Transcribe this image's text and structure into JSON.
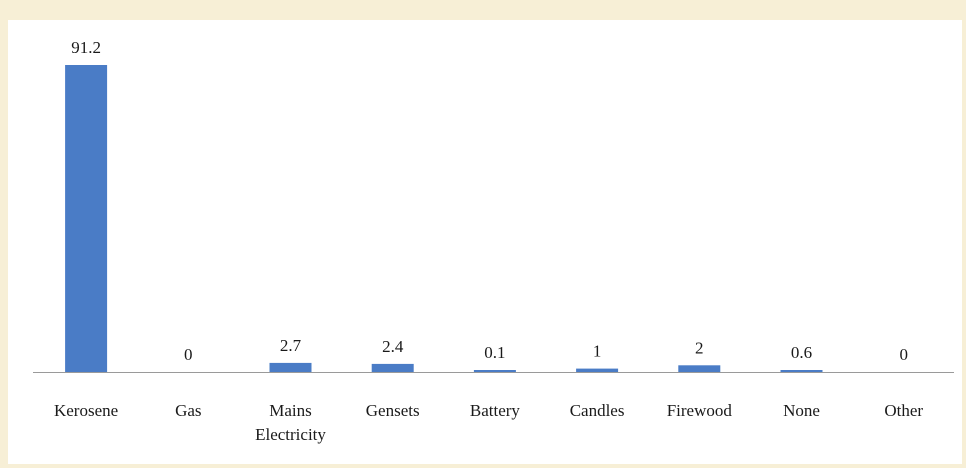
{
  "chart_data": {
    "type": "bar",
    "categories": [
      "Kerosene",
      "Gas",
      "Mains Electricity",
      "Gensets",
      "Battery",
      "Candles",
      "Firewood",
      "None",
      "Other"
    ],
    "values": [
      91.2,
      0,
      2.7,
      2.4,
      0.1,
      1,
      2,
      0.6,
      0
    ],
    "value_labels": [
      "91.2",
      "0",
      "2.7",
      "2.4",
      "0.1",
      "1",
      "2",
      "0.6",
      "0"
    ],
    "title": "",
    "xlabel": "",
    "ylabel": "",
    "ylim": [
      0,
      91.2
    ],
    "grid": false,
    "legend": "none",
    "bar_color": "#4a7cc6",
    "axis_color": "#9a9a9a"
  }
}
